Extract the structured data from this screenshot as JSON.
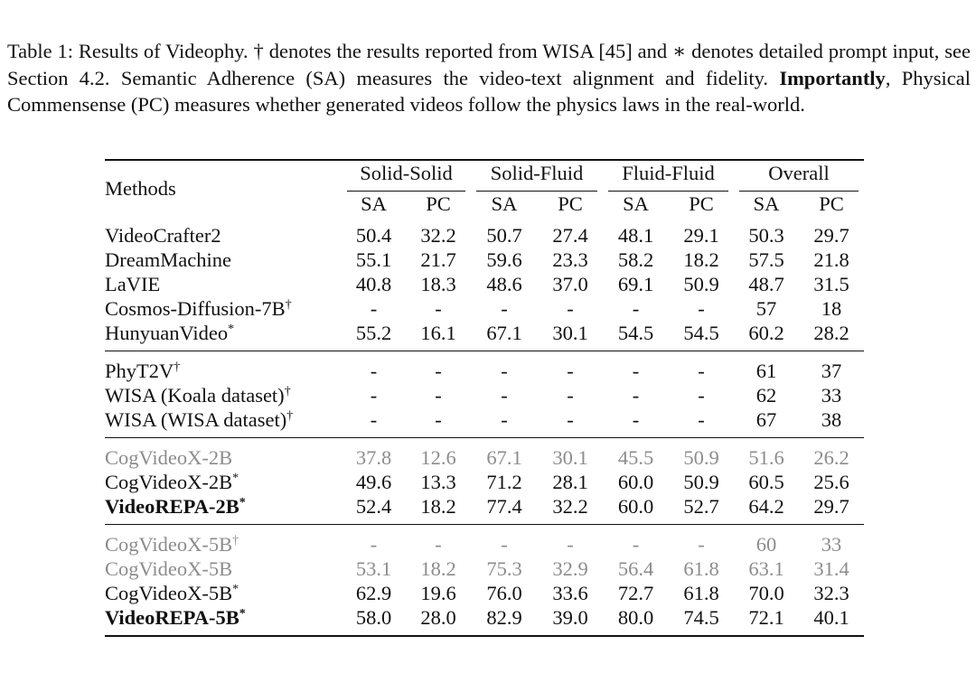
{
  "caption": {
    "part1": "Table 1: Results of Videophy. † denotes the results reported from WISA [45] and ∗ denotes detailed prompt input, see Section 4.2. Semantic Adherence (SA) measures the video-text alignment and fidelity. ",
    "bold": "Importantly",
    "part2": ", Physical Commensense (PC) measures whether generated videos follow the physics laws in the real-world."
  },
  "table": {
    "methods_header": "Methods",
    "groups": [
      "Solid-Solid",
      "Solid-Fluid",
      "Fluid-Fluid",
      "Overall"
    ],
    "sub_headers": [
      "SA",
      "PC",
      "SA",
      "PC",
      "SA",
      "PC",
      "SA",
      "PC"
    ],
    "sections": [
      {
        "rows": [
          {
            "name": "VideoCrafter2",
            "sup": "",
            "values": [
              "50.4",
              "32.2",
              "50.7",
              "27.4",
              "48.1",
              "29.1",
              "50.3",
              "29.7"
            ]
          },
          {
            "name": "DreamMachine",
            "sup": "",
            "values": [
              "55.1",
              "21.7",
              "59.6",
              "23.3",
              "58.2",
              "18.2",
              "57.5",
              "21.8"
            ]
          },
          {
            "name": "LaVIE",
            "sup": "",
            "values": [
              "40.8",
              "18.3",
              "48.6",
              "37.0",
              "69.1",
              "50.9",
              "48.7",
              "31.5"
            ]
          },
          {
            "name": "Cosmos-Diffusion-7B",
            "sup": "†",
            "values": [
              "-",
              "-",
              "-",
              "-",
              "-",
              "-",
              "57",
              "18"
            ]
          },
          {
            "name": "HunyuanVideo",
            "sup": "*",
            "values": [
              "55.2",
              "16.1",
              "67.1",
              "30.1",
              "54.5",
              "54.5",
              "60.2",
              "28.2"
            ]
          }
        ]
      },
      {
        "rows": [
          {
            "name": "PhyT2V",
            "sup": "†",
            "values": [
              "-",
              "-",
              "-",
              "-",
              "-",
              "-",
              "61",
              "37"
            ]
          },
          {
            "name": "WISA (Koala dataset)",
            "sup": "†",
            "values": [
              "-",
              "-",
              "-",
              "-",
              "-",
              "-",
              "62",
              "33"
            ]
          },
          {
            "name": "WISA (WISA dataset)",
            "sup": "†",
            "values": [
              "-",
              "-",
              "-",
              "-",
              "-",
              "-",
              "67",
              "38"
            ]
          }
        ]
      },
      {
        "rows": [
          {
            "name": "CogVideoX-2B",
            "sup": "",
            "gray": true,
            "values": [
              "37.8",
              "12.6",
              "67.1",
              "30.1",
              "45.5",
              "50.9",
              "51.6",
              "26.2"
            ]
          },
          {
            "name": "CogVideoX-2B",
            "sup": "*",
            "values": [
              "49.6",
              "13.3",
              "71.2",
              "28.1",
              "60.0",
              "50.9",
              "60.5",
              "25.6"
            ]
          },
          {
            "name": "VideoREPA-2B",
            "sup": "*",
            "bold": true,
            "values": [
              "52.4",
              "18.2",
              "77.4",
              "32.2",
              "60.0",
              "52.7",
              "64.2",
              "29.7"
            ]
          }
        ]
      },
      {
        "rows": [
          {
            "name": "CogVideoX-5B",
            "sup": "†",
            "gray": true,
            "values": [
              "-",
              "-",
              "-",
              "-",
              "-",
              "-",
              "60",
              "33"
            ]
          },
          {
            "name": "CogVideoX-5B",
            "sup": "",
            "gray": true,
            "values": [
              "53.1",
              "18.2",
              "75.3",
              "32.9",
              "56.4",
              "61.8",
              "63.1",
              "31.4"
            ]
          },
          {
            "name": "CogVideoX-5B",
            "sup": "*",
            "bold_cells": [
              0
            ],
            "values": [
              "62.9",
              "19.6",
              "76.0",
              "33.6",
              "72.7",
              "61.8",
              "70.0",
              "32.3"
            ]
          },
          {
            "name": "VideoREPA-5B",
            "sup": "*",
            "bold": true,
            "bold_cells": [
              1,
              2,
              3,
              4,
              5,
              6,
              7
            ],
            "values": [
              "58.0",
              "28.0",
              "82.9",
              "39.0",
              "80.0",
              "74.5",
              "72.1",
              "40.1"
            ]
          }
        ]
      }
    ]
  }
}
